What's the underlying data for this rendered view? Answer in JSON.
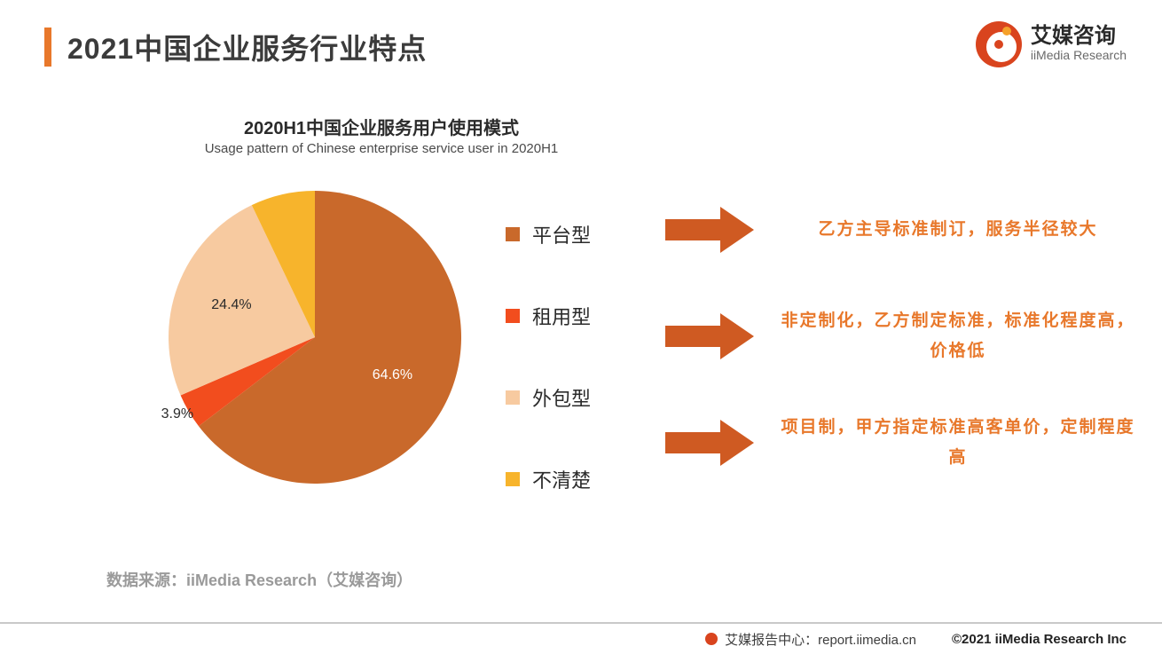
{
  "header": {
    "title": "2021中国企业服务行业特点",
    "marker_color": "#e8782b"
  },
  "logo": {
    "name_cn": "艾媒咨询",
    "name_en": "iiMedia Research"
  },
  "chart": {
    "type": "pie",
    "title_cn": "2020H1中国企业服务用户使用模式",
    "title_en": "Usage pattern  of Chinese enterprise service user in  2020H1",
    "slices": [
      {
        "label": "平台型",
        "value": 64.6,
        "color": "#c9692b",
        "show_pct": true
      },
      {
        "label": "租用型",
        "value": 3.9,
        "color": "#f24d1e",
        "show_pct": true
      },
      {
        "label": "外包型",
        "value": 24.4,
        "color": "#f7caa0",
        "show_pct": true
      },
      {
        "label": "不清楚",
        "value": 7.1,
        "color": "#f7b42c",
        "show_pct": false
      }
    ],
    "radius": 165,
    "label_fontsize": 16,
    "background_color": "#ffffff"
  },
  "legend": {
    "items": [
      {
        "label": "平台型",
        "color": "#c9692b"
      },
      {
        "label": "租用型",
        "color": "#f24d1e"
      },
      {
        "label": "外包型",
        "color": "#f7caa0"
      },
      {
        "label": "不清楚",
        "color": "#f7b42c"
      }
    ],
    "fontsize": 22
  },
  "callouts": {
    "arrow_color": "#cf5a22",
    "text_color": "#e8782b",
    "items": [
      {
        "text": "乙方主导标准制订，服务半径较大"
      },
      {
        "text": "非定制化，乙方制定标准，标准化程度高，价格低"
      },
      {
        "text": "项目制，甲方指定标准高客单价，定制程度高"
      }
    ]
  },
  "source": {
    "text": "数据来源：iiMedia Research（艾媒咨询）"
  },
  "footer": {
    "center": "艾媒报告中心：report.iimedia.cn",
    "copyright": "©2021  iiMedia Research  Inc"
  }
}
